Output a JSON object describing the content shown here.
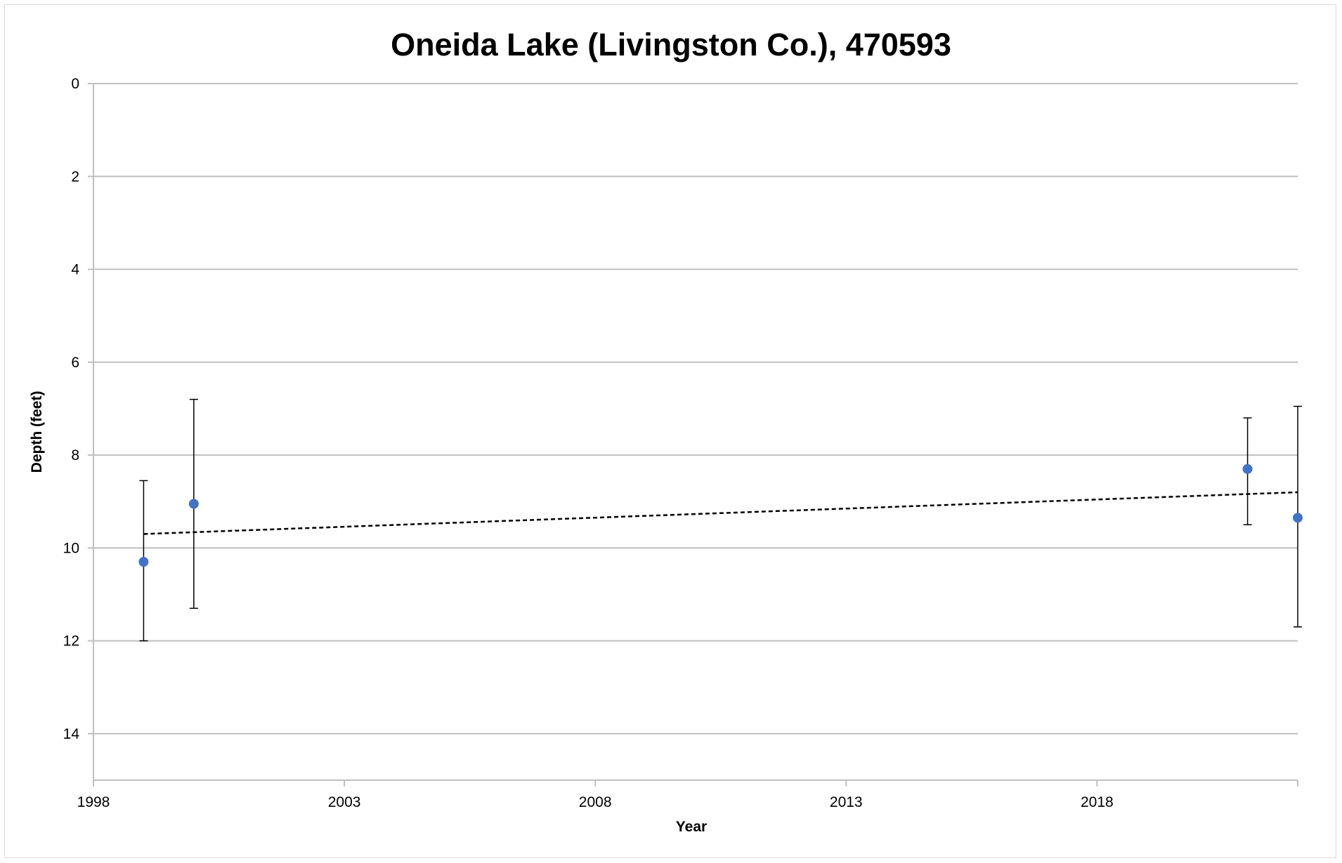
{
  "chart_data": {
    "type": "scatter",
    "title": "Oneida Lake (Livingston Co.), 470593",
    "xlabel": "Year",
    "ylabel": "Depth (feet)",
    "xlim": [
      1998,
      2022
    ],
    "ylim": [
      0,
      15
    ],
    "y_inverted": true,
    "x_ticks": [
      1998,
      2003,
      2008,
      2013,
      2018
    ],
    "y_ticks": [
      0,
      2,
      4,
      6,
      8,
      10,
      12,
      14
    ],
    "grid": "horizontal",
    "legend": "none",
    "series": [
      {
        "color": "#4472C4",
        "points": [
          {
            "x": 1999,
            "y": 10.3,
            "err_low": 8.55,
            "err_high": 12.0
          },
          {
            "x": 2000,
            "y": 9.05,
            "err_low": 6.8,
            "err_high": 11.3
          },
          {
            "x": 2021,
            "y": 8.3,
            "err_low": 7.2,
            "err_high": 9.5
          },
          {
            "x": 2022,
            "y": 9.35,
            "err_low": 6.95,
            "err_high": 11.7
          }
        ]
      }
    ],
    "trendline": {
      "style": "dashed",
      "color": "#000000",
      "x": [
        1999,
        2022
      ],
      "y": [
        9.7,
        8.8
      ]
    }
  }
}
